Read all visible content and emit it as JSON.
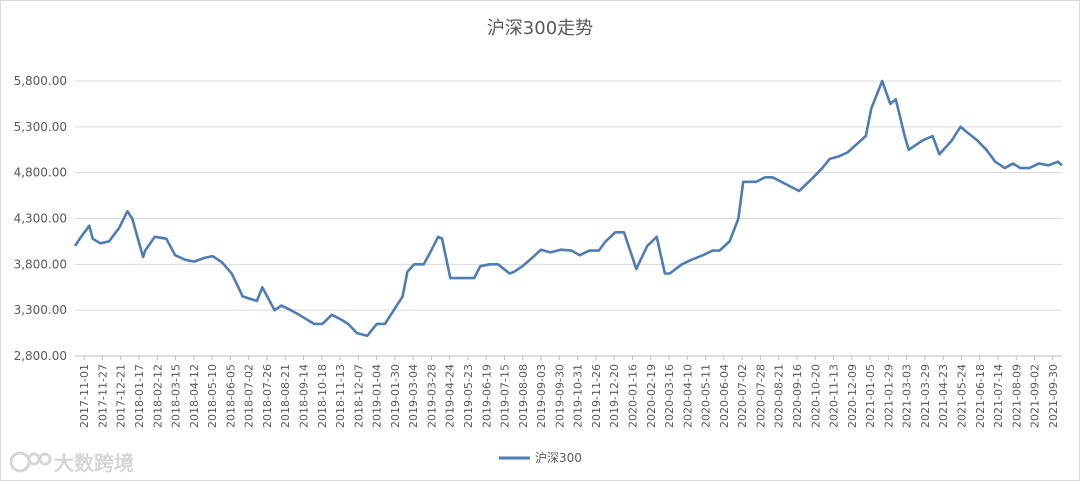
{
  "chart_data": {
    "type": "line",
    "title": "沪深300走势",
    "xlabel": "",
    "ylabel": "",
    "ylim": [
      2800,
      5800
    ],
    "yticks": [
      2800,
      3300,
      3800,
      4300,
      4800,
      5300,
      5800
    ],
    "ytick_labels": [
      "2,800.00",
      "3,300.00",
      "3,800.00",
      "4,300.00",
      "4,800.00",
      "5,300.00",
      "5,800.00"
    ],
    "xticks": [
      "2017-11-01",
      "2017-11-27",
      "2017-12-21",
      "2018-01-17",
      "2018-02-12",
      "2018-03-15",
      "2018-04-12",
      "2018-05-10",
      "2018-06-05",
      "2018-07-02",
      "2018-07-26",
      "2018-08-21",
      "2018-09-14",
      "2018-10-18",
      "2018-11-13",
      "2018-12-07",
      "2019-01-04",
      "2019-01-30",
      "2019-03-04",
      "2019-03-28",
      "2019-04-24",
      "2019-05-23",
      "2019-06-19",
      "2019-07-15",
      "2019-08-08",
      "2019-09-03",
      "2019-09-30",
      "2019-10-31",
      "2019-11-26",
      "2019-12-20",
      "2020-01-16",
      "2020-02-19",
      "2020-03-16",
      "2020-04-10",
      "2020-05-11",
      "2020-06-04",
      "2020-07-02",
      "2020-07-28",
      "2020-08-21",
      "2020-09-16",
      "2020-10-20",
      "2020-11-13",
      "2020-12-09",
      "2021-01-05",
      "2021-01-29",
      "2021-03-03",
      "2021-03-29",
      "2021-04-23",
      "2021-05-24",
      "2021-06-18",
      "2021-07-14",
      "2021-08-09",
      "2021-09-02",
      "2021-09-30"
    ],
    "grid": true,
    "legend": "bottom",
    "series": [
      {
        "name": "沪深300",
        "color": "#4e7cb4",
        "x": [
          "2017-11-01",
          "2017-11-10",
          "2017-11-22",
          "2017-11-27",
          "2017-12-08",
          "2017-12-21",
          "2018-01-05",
          "2018-01-17",
          "2018-01-24",
          "2018-02-09",
          "2018-02-12",
          "2018-02-26",
          "2018-03-15",
          "2018-03-28",
          "2018-04-12",
          "2018-04-25",
          "2018-05-10",
          "2018-05-22",
          "2018-06-05",
          "2018-06-19",
          "2018-07-02",
          "2018-07-05",
          "2018-07-26",
          "2018-08-03",
          "2018-08-21",
          "2018-08-31",
          "2018-09-14",
          "2018-09-26",
          "2018-10-18",
          "2018-10-30",
          "2018-11-13",
          "2018-11-26",
          "2018-12-07",
          "2018-12-20",
          "2019-01-04",
          "2019-01-18",
          "2019-01-30",
          "2019-02-25",
          "2019-03-04",
          "2019-03-14",
          "2019-03-28",
          "2019-04-08",
          "2019-04-18",
          "2019-04-24",
          "2019-05-06",
          "2019-05-23",
          "2019-06-10",
          "2019-06-19",
          "2019-07-03",
          "2019-07-15",
          "2019-08-01",
          "2019-08-08",
          "2019-08-20",
          "2019-09-03",
          "2019-09-16",
          "2019-09-30",
          "2019-10-15",
          "2019-10-31",
          "2019-11-12",
          "2019-11-26",
          "2019-12-10",
          "2019-12-20",
          "2020-01-03",
          "2020-01-16",
          "2020-02-03",
          "2020-02-19",
          "2020-03-04",
          "2020-03-16",
          "2020-03-23",
          "2020-04-10",
          "2020-04-24",
          "2020-05-11",
          "2020-05-25",
          "2020-06-04",
          "2020-06-19",
          "2020-07-02",
          "2020-07-09",
          "2020-07-28",
          "2020-08-10",
          "2020-08-21",
          "2020-09-03",
          "2020-09-16",
          "2020-09-29",
          "2020-10-20",
          "2020-11-02",
          "2020-11-13",
          "2020-11-27",
          "2020-12-09",
          "2020-12-21",
          "2021-01-05",
          "2021-01-13",
          "2021-01-29",
          "2021-02-10",
          "2021-02-18",
          "2021-03-03",
          "2021-03-09",
          "2021-03-29",
          "2021-04-13",
          "2021-04-23",
          "2021-05-11",
          "2021-05-24",
          "2021-06-01",
          "2021-06-18",
          "2021-07-01",
          "2021-07-14",
          "2021-07-28",
          "2021-08-09",
          "2021-08-20",
          "2021-09-02",
          "2021-09-16",
          "2021-09-30",
          "2021-10-14",
          "2021-10-20"
        ],
        "values": [
          4000,
          4100,
          4220,
          4080,
          4030,
          4050,
          4200,
          4380,
          4300,
          3880,
          3950,
          4100,
          4080,
          3900,
          3850,
          3830,
          3870,
          3890,
          3820,
          3700,
          3500,
          3450,
          3400,
          3550,
          3300,
          3350,
          3300,
          3250,
          3150,
          3150,
          3250,
          3200,
          3150,
          3050,
          3020,
          3150,
          3150,
          3450,
          3720,
          3800,
          3800,
          3950,
          4100,
          4080,
          3650,
          3650,
          3650,
          3780,
          3800,
          3800,
          3700,
          3720,
          3780,
          3870,
          3960,
          3930,
          3960,
          3950,
          3900,
          3950,
          3950,
          4050,
          4150,
          4150,
          3750,
          4000,
          4100,
          3700,
          3700,
          3800,
          3850,
          3900,
          3950,
          3950,
          4050,
          4300,
          4700,
          4700,
          4750,
          4750,
          4700,
          4650,
          4600,
          4750,
          4850,
          4950,
          4980,
          5020,
          5100,
          5200,
          5500,
          5800,
          5550,
          5600,
          5200,
          5050,
          5150,
          5200,
          5000,
          5150,
          5300,
          5250,
          5150,
          5050,
          4920,
          4850,
          4900,
          4850,
          4850,
          4900,
          4880,
          4920,
          4880
        ]
      }
    ]
  },
  "legend": {
    "label": "沪深300"
  },
  "watermark": {
    "text": "大数跨境"
  }
}
